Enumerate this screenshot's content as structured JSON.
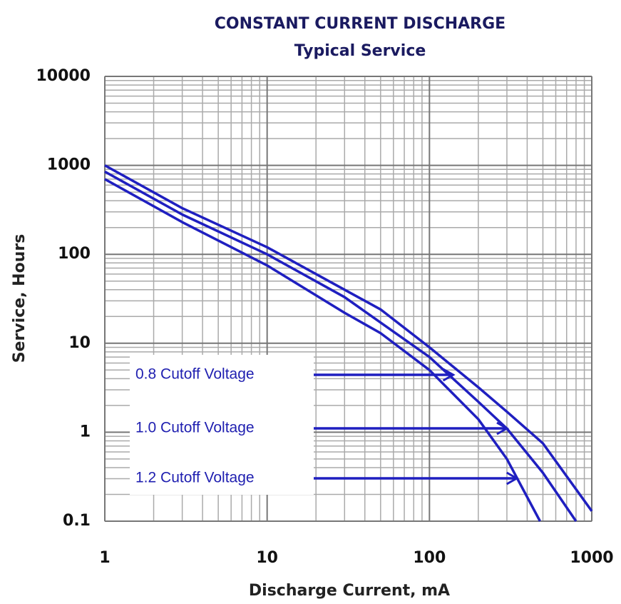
{
  "chart_data": {
    "type": "line",
    "title": "CONSTANT CURRENT DISCHARGE",
    "subtitle": "Typical Service",
    "x_label": "Discharge Current, mA",
    "y_label": "Service, Hours",
    "xscale": "log",
    "yscale": "log",
    "grid": true,
    "minor_grid": true,
    "xlim": [
      1,
      1000
    ],
    "xticks": [
      1,
      10,
      100,
      1000
    ],
    "ylim": [
      0.1,
      10000
    ],
    "yticks": [
      0.1,
      1,
      10,
      100,
      1000,
      10000
    ],
    "color": "#1f1fc0",
    "series": [
      {
        "name": "0.8 Cutoff Voltage",
        "x": [
          1,
          3,
          10,
          30,
          50,
          100,
          200,
          300,
          500,
          1000
        ],
        "values": [
          1000,
          330,
          120,
          40,
          24,
          9,
          3.2,
          1.7,
          0.75,
          0.13
        ]
      },
      {
        "name": "1.0 Cutoff Voltage",
        "x": [
          1,
          3,
          10,
          30,
          100,
          200,
          300,
          500,
          800
        ],
        "values": [
          850,
          280,
          100,
          33,
          7,
          2.2,
          1.1,
          0.35,
          0.1
        ]
      },
      {
        "name": "1.2 Cutoff Voltage",
        "x": [
          1,
          3,
          10,
          30,
          50,
          100,
          200,
          300,
          480
        ],
        "values": [
          700,
          230,
          75,
          22,
          13,
          5,
          1.4,
          0.5,
          0.1
        ]
      }
    ],
    "annotations": [
      {
        "text": "0.8 Cutoff Voltage",
        "x": 140,
        "y": 5
      },
      {
        "text": "1.0 Cutoff Voltage",
        "x": 300,
        "y": 1
      },
      {
        "text": "1.2 Cutoff Voltage",
        "x": 345,
        "y": 0.28
      }
    ]
  }
}
